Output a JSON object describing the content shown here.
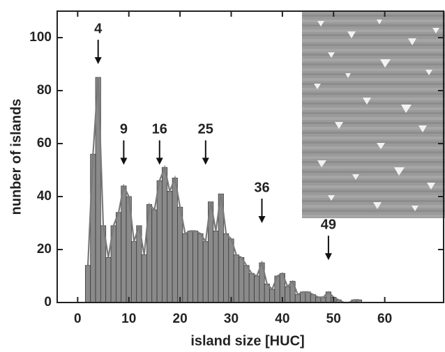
{
  "chart_data": {
    "type": "histogram",
    "xlabel": "island size [HUC]",
    "ylabel": "nunber of islands",
    "bins": [
      1.5,
      2.5,
      3.5,
      4.5,
      5.5,
      6.5,
      7.5,
      8.5,
      9.5,
      10.5,
      11.5,
      12.5,
      13.5,
      14.5,
      15.5,
      16.5,
      17.5,
      18.5,
      19.5,
      20.5,
      21.5,
      22.5,
      23.5,
      24.5,
      25.5,
      26.5,
      27.5,
      28.5,
      29.5,
      30.5,
      31.5,
      32.5,
      33.5,
      34.5,
      35.5,
      36.5,
      37.5,
      38.5,
      39.5,
      40.5,
      41.5,
      42.5,
      43.5,
      44.5,
      45.5,
      46.5,
      47.5,
      48.5,
      49.5,
      50.5,
      51.5,
      52.5,
      53.5,
      54.5,
      55.5
    ],
    "values": [
      14,
      56,
      85,
      29,
      17,
      29,
      34,
      44,
      40,
      23,
      29,
      18,
      37,
      35,
      46,
      51,
      42,
      47,
      36,
      26,
      27,
      27,
      26,
      23,
      38,
      27,
      41,
      26,
      24,
      18,
      17,
      14,
      11,
      10,
      15,
      7,
      5,
      10,
      11,
      6,
      8,
      3,
      4,
      4,
      3,
      2,
      2,
      4,
      2,
      1,
      0,
      0,
      1,
      1
    ],
    "color": "#8a8a8a",
    "edge_color": "#3a3a3a",
    "line_color": "#7a7a7a",
    "xlim": [
      -4,
      71.5
    ],
    "ylim": [
      0,
      110
    ],
    "xticks": [
      0,
      10,
      20,
      30,
      40,
      50,
      60
    ],
    "yticks": [
      0,
      20,
      40,
      60,
      80,
      100
    ],
    "annotations": [
      {
        "text": "4",
        "x": 4,
        "y": 90
      },
      {
        "text": "9",
        "x": 9,
        "y": 52
      },
      {
        "text": "16",
        "x": 16,
        "y": 52
      },
      {
        "text": "25",
        "x": 25,
        "y": 52
      },
      {
        "text": "36",
        "x": 36,
        "y": 30
      },
      {
        "text": "49",
        "x": 49,
        "y": 16
      }
    ]
  }
}
